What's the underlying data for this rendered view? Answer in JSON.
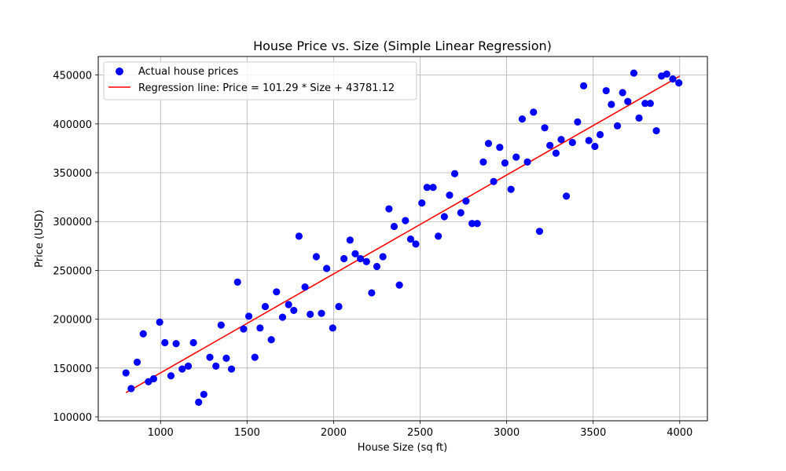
{
  "chart_data": {
    "type": "scatter",
    "title": "House Price vs. Size (Simple Linear Regression)",
    "xlabel": "House Size (sq ft)",
    "ylabel": "Price (USD)",
    "xlim": [
      640,
      4160
    ],
    "ylim": [
      96000,
      469000
    ],
    "xticks": [
      1000,
      1500,
      2000,
      2500,
      3000,
      3500,
      4000
    ],
    "yticks": [
      100000,
      150000,
      200000,
      250000,
      300000,
      350000,
      400000,
      450000
    ],
    "xtick_labels": [
      "1000",
      "1500",
      "2000",
      "2500",
      "3000",
      "3500",
      "4000"
    ],
    "ytick_labels": [
      "100000",
      "150000",
      "200000",
      "250000",
      "300000",
      "350000",
      "400000",
      "450000"
    ],
    "grid": true,
    "legend_position": "top-left",
    "series": [
      {
        "name": "Actual house prices",
        "kind": "scatter",
        "color": "#0000ff",
        "points": [
          [
            800,
            145000
          ],
          [
            830,
            129000
          ],
          [
            865,
            156000
          ],
          [
            900,
            185000
          ],
          [
            930,
            136000
          ],
          [
            960,
            139000
          ],
          [
            995,
            197000
          ],
          [
            1025,
            176000
          ],
          [
            1060,
            142000
          ],
          [
            1090,
            175000
          ],
          [
            1125,
            149000
          ],
          [
            1160,
            152000
          ],
          [
            1190,
            176000
          ],
          [
            1220,
            115000
          ],
          [
            1250,
            123000
          ],
          [
            1285,
            161000
          ],
          [
            1320,
            152000
          ],
          [
            1350,
            194000
          ],
          [
            1380,
            160000
          ],
          [
            1410,
            149000
          ],
          [
            1445,
            238000
          ],
          [
            1480,
            190000
          ],
          [
            1510,
            203000
          ],
          [
            1545,
            161000
          ],
          [
            1575,
            191000
          ],
          [
            1605,
            213000
          ],
          [
            1640,
            179000
          ],
          [
            1670,
            228000
          ],
          [
            1705,
            202000
          ],
          [
            1740,
            215000
          ],
          [
            1770,
            209000
          ],
          [
            1800,
            285000
          ],
          [
            1835,
            233000
          ],
          [
            1865,
            205000
          ],
          [
            1900,
            264000
          ],
          [
            1930,
            206000
          ],
          [
            1960,
            252000
          ],
          [
            1995,
            191000
          ],
          [
            2030,
            213000
          ],
          [
            2060,
            262000
          ],
          [
            2095,
            281000
          ],
          [
            2125,
            267000
          ],
          [
            2155,
            262000
          ],
          [
            2190,
            259000
          ],
          [
            2220,
            227000
          ],
          [
            2250,
            254000
          ],
          [
            2285,
            264000
          ],
          [
            2320,
            313000
          ],
          [
            2350,
            295000
          ],
          [
            2380,
            235000
          ],
          [
            2415,
            301000
          ],
          [
            2445,
            282000
          ],
          [
            2475,
            277000
          ],
          [
            2510,
            319000
          ],
          [
            2540,
            335000
          ],
          [
            2575,
            335000
          ],
          [
            2605,
            285000
          ],
          [
            2640,
            305000
          ],
          [
            2670,
            327000
          ],
          [
            2700,
            349000
          ],
          [
            2735,
            309000
          ],
          [
            2765,
            321000
          ],
          [
            2800,
            298000
          ],
          [
            2830,
            298000
          ],
          [
            2865,
            361000
          ],
          [
            2895,
            380000
          ],
          [
            2925,
            341000
          ],
          [
            2960,
            376000
          ],
          [
            2990,
            360000
          ],
          [
            3025,
            333000
          ],
          [
            3055,
            366000
          ],
          [
            3090,
            405000
          ],
          [
            3120,
            361000
          ],
          [
            3155,
            412000
          ],
          [
            3190,
            290000
          ],
          [
            3220,
            396000
          ],
          [
            3250,
            378000
          ],
          [
            3285,
            370000
          ],
          [
            3315,
            384000
          ],
          [
            3345,
            326000
          ],
          [
            3380,
            381000
          ],
          [
            3410,
            402000
          ],
          [
            3445,
            439000
          ],
          [
            3475,
            383000
          ],
          [
            3510,
            377000
          ],
          [
            3540,
            389000
          ],
          [
            3575,
            434000
          ],
          [
            3605,
            420000
          ],
          [
            3640,
            398000
          ],
          [
            3670,
            432000
          ],
          [
            3700,
            423000
          ],
          [
            3735,
            452000
          ],
          [
            3765,
            406000
          ],
          [
            3800,
            421000
          ],
          [
            3830,
            421000
          ],
          [
            3865,
            393000
          ],
          [
            3895,
            449000
          ],
          [
            3925,
            451000
          ],
          [
            3960,
            446000
          ],
          [
            3995,
            442000
          ]
        ]
      },
      {
        "name": "Regression line: Price = 101.29 * Size + 43781.12",
        "kind": "line",
        "color": "#ff0000",
        "points": [
          [
            800,
            124813.12
          ],
          [
            4000,
            448941.12
          ]
        ]
      }
    ]
  }
}
